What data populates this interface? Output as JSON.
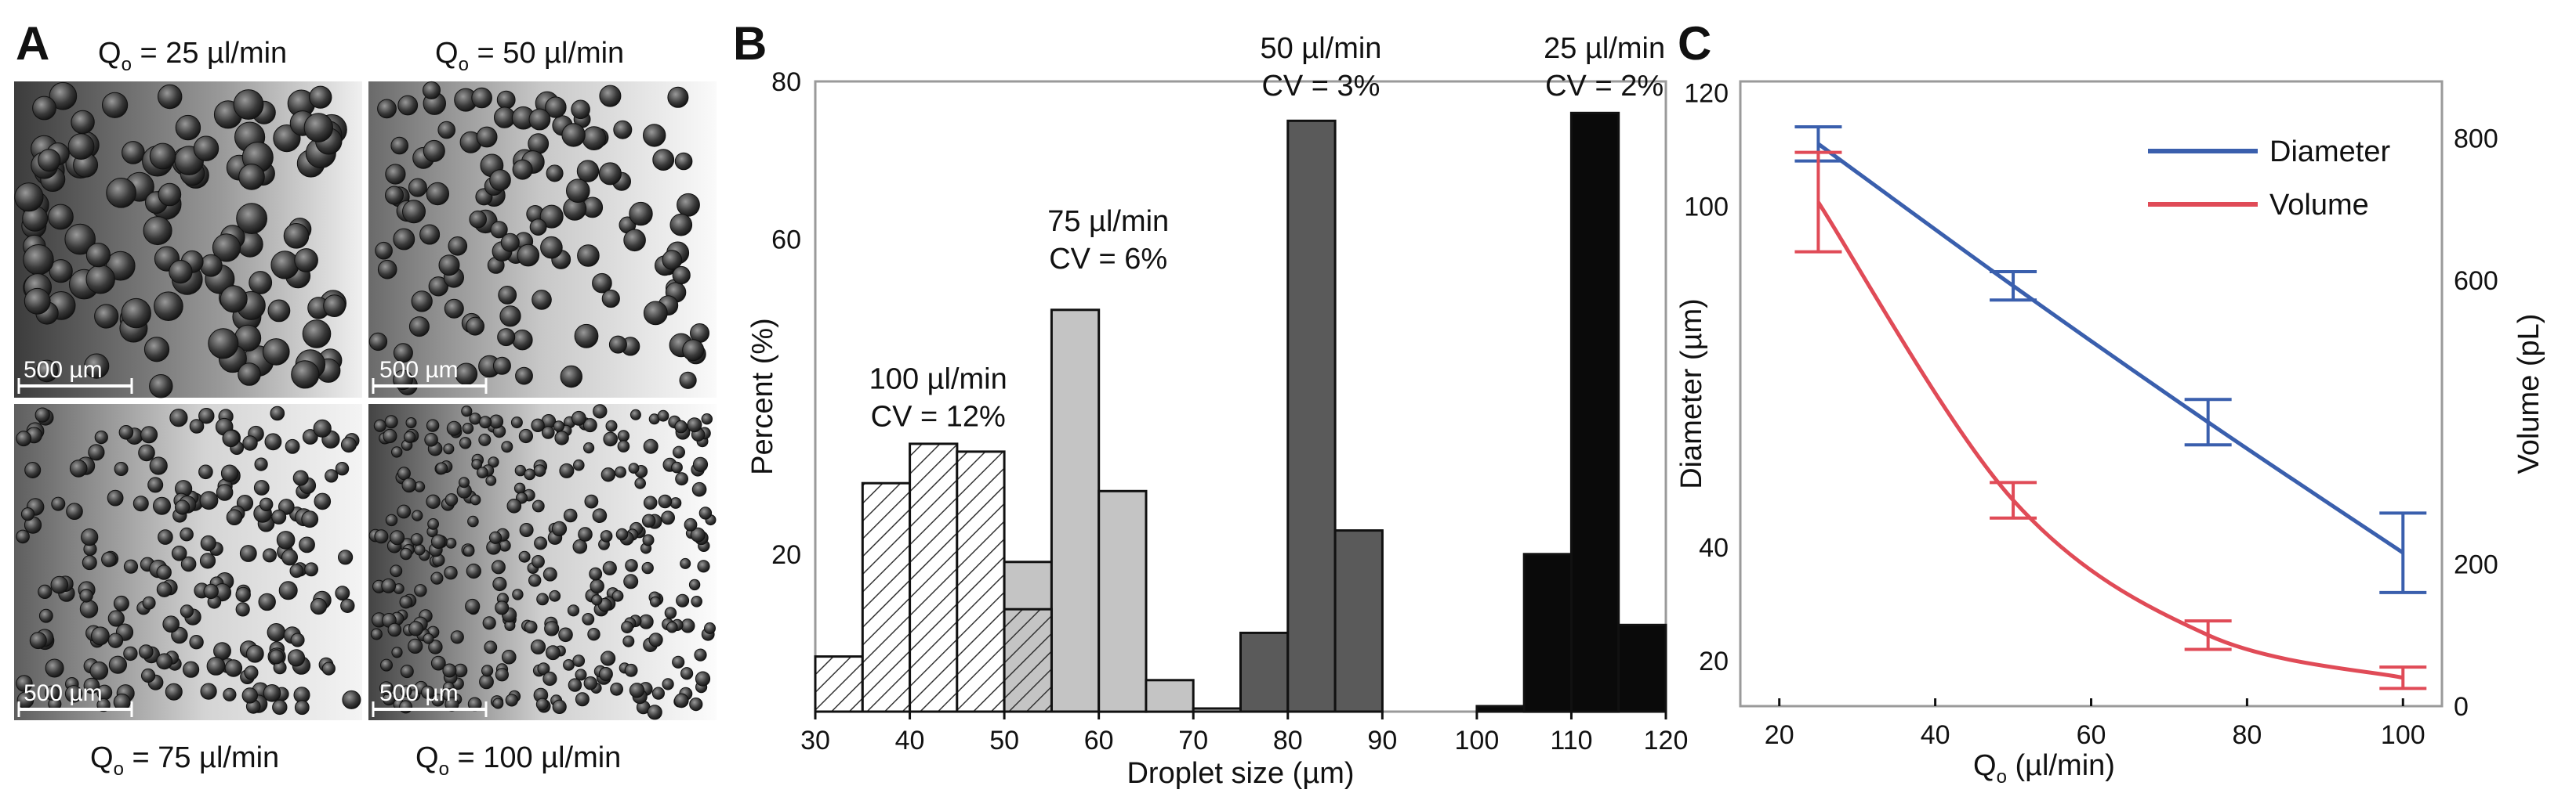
{
  "panels": {
    "A": {
      "letter": "A",
      "images": [
        {
          "label": "Q",
          "sub": "o",
          "rest": " = 25 µl/min",
          "scale_bar": "500 µm"
        },
        {
          "label": "Q",
          "sub": "o",
          "rest": " = 50 µl/min",
          "scale_bar": "500 µm"
        },
        {
          "label": "Q",
          "sub": "o",
          "rest": " = 75 µl/min",
          "scale_bar": "500 µm"
        },
        {
          "label": "Q",
          "sub": "o",
          "rest": " = 100 µl/min",
          "scale_bar": "500 µm"
        }
      ]
    },
    "B": {
      "letter": "B"
    },
    "C": {
      "letter": "C"
    }
  },
  "chart_data": [
    {
      "type": "bar",
      "subtype": "histogram",
      "panel": "B",
      "xlabel": "Droplet size (µm)",
      "ylabel": "Percent (%)",
      "xlim": [
        30,
        120
      ],
      "ylim": [
        0,
        80
      ],
      "xticks": [
        30,
        40,
        50,
        60,
        70,
        80,
        90,
        100,
        110,
        120
      ],
      "yticks": [
        20,
        60,
        80
      ],
      "bin_width": 5,
      "series": [
        {
          "group": "100 µl/min",
          "fill": "hatch",
          "bins": [
            [
              30,
              7
            ],
            [
              35,
              29
            ],
            [
              40,
              34
            ],
            [
              45,
              33
            ],
            [
              50,
              13
            ]
          ]
        },
        {
          "group": "75 µl/min",
          "fill": "#c4c4c4",
          "bins": [
            [
              50,
              19
            ],
            [
              55,
              51
            ],
            [
              60,
              28
            ],
            [
              65,
              4
            ],
            [
              70,
              0.4
            ]
          ]
        },
        {
          "group": "50 µl/min",
          "fill": "#5a5a5a",
          "bins": [
            [
              75,
              10
            ],
            [
              80,
              75
            ],
            [
              85,
              23
            ]
          ]
        },
        {
          "group": "25 µl/min",
          "fill": "#0a0a0a",
          "bins": [
            [
              100,
              0.7
            ],
            [
              105,
              20
            ],
            [
              110,
              76
            ],
            [
              115,
              11
            ]
          ]
        }
      ],
      "annotations": [
        {
          "lines": [
            "100 µl/min",
            "CV = 12%"
          ],
          "x": 43,
          "y": 41
        },
        {
          "lines": [
            "75 µl/min",
            "CV = 6%"
          ],
          "x": 61,
          "y": 61
        },
        {
          "lines": [
            "50 µl/min",
            "CV = 3%"
          ],
          "x": 83.5,
          "y": 83
        },
        {
          "lines": [
            "25 µl/min",
            "CV = 2%"
          ],
          "x": 113.5,
          "y": 83
        }
      ]
    },
    {
      "type": "line",
      "panel": "C",
      "xlabel_main": "Q",
      "xlabel_sub": "o",
      "xlabel_rest": " (µl/min)",
      "ylabel": "Diameter (µm)",
      "y2label": "Volume (pL)",
      "xlim": [
        15,
        105
      ],
      "ylim": [
        12,
        122
      ],
      "y2lim": [
        0,
        880
      ],
      "xticks": [
        20,
        40,
        60,
        80,
        100
      ],
      "yticks": [
        20,
        40,
        100,
        120
      ],
      "y2ticks": [
        0,
        200,
        600,
        800
      ],
      "series": [
        {
          "name": "Diameter",
          "color": "#3a5fad",
          "axis": "left",
          "x": [
            25,
            50,
            75,
            100
          ],
          "y": [
            111,
            86,
            62,
            39
          ],
          "err": [
            3,
            2.5,
            4,
            7
          ]
        },
        {
          "name": "Volume",
          "color": "#e04b57",
          "axis": "right",
          "x": [
            25,
            50,
            75,
            100
          ],
          "y": [
            710,
            290,
            100,
            40
          ],
          "err": [
            70,
            25,
            20,
            15
          ]
        }
      ]
    }
  ]
}
